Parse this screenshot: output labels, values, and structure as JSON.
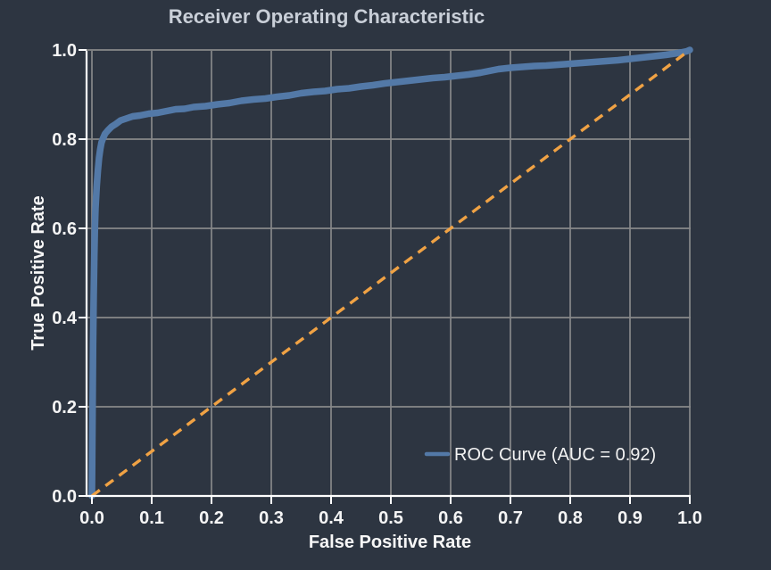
{
  "figure": {
    "title": "Receiver Operating Characteristic"
  },
  "colors": {
    "background": "#2d3541",
    "grid": "#87888a",
    "axis": "#ffffff",
    "title_text": "#c9cfd8",
    "tick_text": "#f5f5f5",
    "roc_line": "#5379a7",
    "chance_line": "#f0a244"
  },
  "chart_data": {
    "type": "line",
    "title": "Receiver Operating Characteristic",
    "xlabel": "False Positive Rate",
    "ylabel": "True Positive Rate",
    "x_ticks": [
      "0.0",
      "0.1",
      "0.2",
      "0.3",
      "0.4",
      "0.5",
      "0.6",
      "0.7",
      "0.8",
      "0.9",
      "1.0"
    ],
    "y_ticks": [
      "0.0",
      "0.2",
      "0.4",
      "0.6",
      "0.8",
      "1.0"
    ],
    "xlim": [
      -0.01,
      1.0
    ],
    "ylim": [
      0.0,
      1.0
    ],
    "grid": true,
    "auc": 0.92,
    "legend": {
      "position": "lower right",
      "entries": [
        {
          "label": "ROC Curve (AUC = 0.92)",
          "color": "#5379a7",
          "style": "solid"
        }
      ]
    },
    "series": [
      {
        "name": "ROC Curve (AUC = 0.92)",
        "style": "solid",
        "color": "#5379a7",
        "x": [
          0,
          0.001,
          0.002,
          0.003,
          0.004,
          0.005,
          0.006,
          0.008,
          0.01,
          0.012,
          0.014,
          0.016,
          0.018,
          0.022,
          0.027,
          0.033,
          0.04,
          0.048,
          0.057,
          0.068,
          0.08,
          0.095,
          0.11,
          0.125,
          0.14,
          0.155,
          0.17,
          0.19,
          0.21,
          0.23,
          0.25,
          0.27,
          0.29,
          0.31,
          0.33,
          0.35,
          0.37,
          0.39,
          0.41,
          0.43,
          0.45,
          0.47,
          0.49,
          0.51,
          0.53,
          0.55,
          0.57,
          0.59,
          0.61,
          0.63,
          0.65,
          0.665,
          0.68,
          0.7,
          0.72,
          0.74,
          0.76,
          0.78,
          0.8,
          0.82,
          0.84,
          0.86,
          0.88,
          0.9,
          0.92,
          0.94,
          0.96,
          0.98,
          0.995,
          1.0
        ],
        "y": [
          0,
          0.18,
          0.34,
          0.45,
          0.54,
          0.6,
          0.645,
          0.695,
          0.73,
          0.758,
          0.778,
          0.792,
          0.8,
          0.812,
          0.82,
          0.828,
          0.834,
          0.842,
          0.846,
          0.851,
          0.853,
          0.857,
          0.859,
          0.863,
          0.867,
          0.868,
          0.872,
          0.874,
          0.878,
          0.881,
          0.886,
          0.889,
          0.891,
          0.895,
          0.898,
          0.903,
          0.906,
          0.908,
          0.912,
          0.914,
          0.918,
          0.921,
          0.925,
          0.928,
          0.931,
          0.934,
          0.937,
          0.939,
          0.942,
          0.945,
          0.949,
          0.953,
          0.957,
          0.96,
          0.962,
          0.964,
          0.965,
          0.967,
          0.969,
          0.971,
          0.973,
          0.975,
          0.977,
          0.98,
          0.983,
          0.986,
          0.989,
          0.993,
          0.997,
          1.0
        ]
      },
      {
        "name": "Chance diagonal",
        "style": "dashed",
        "color": "#f0a244",
        "x": [
          0,
          1
        ],
        "y": [
          0,
          1
        ]
      }
    ]
  }
}
